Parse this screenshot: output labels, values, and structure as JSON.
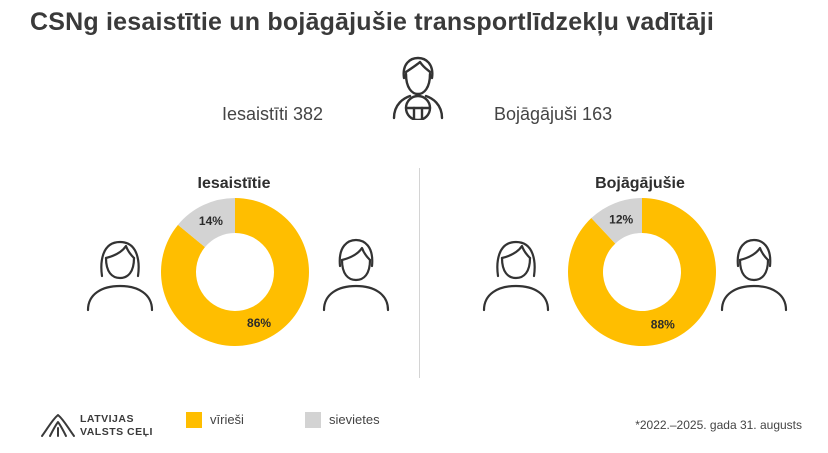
{
  "title": "CSNg iesaistītie un bojāgājušie transportlīdzekļu vadītāji",
  "stats": {
    "involved": "Iesaistīti 382",
    "killed": "Bojāgājuši 163"
  },
  "colors": {
    "male": "#FFBE00",
    "female": "#D3D3D3",
    "icon_stroke": "#333333"
  },
  "icons": [
    "driver-icon",
    "woman-icon",
    "man-icon",
    "logo-icon"
  ],
  "chart_data": [
    {
      "type": "pie",
      "title": "Iesaistītie",
      "categories": [
        "vīrieši",
        "sievietes"
      ],
      "values": [
        86,
        14
      ],
      "labels": [
        "86%",
        "14%"
      ]
    },
    {
      "type": "pie",
      "title": "Bojāgājušie",
      "categories": [
        "vīrieši",
        "sievietes"
      ],
      "values": [
        88,
        12
      ],
      "labels": [
        "88%",
        "12%"
      ]
    }
  ],
  "legend": {
    "male": "vīrieši",
    "female": "sievietes"
  },
  "logo": {
    "line1": "LATVIJAS",
    "line2": "VALSTS CEĻI"
  },
  "footnote": "*2022.–2025. gada 31. augusts"
}
